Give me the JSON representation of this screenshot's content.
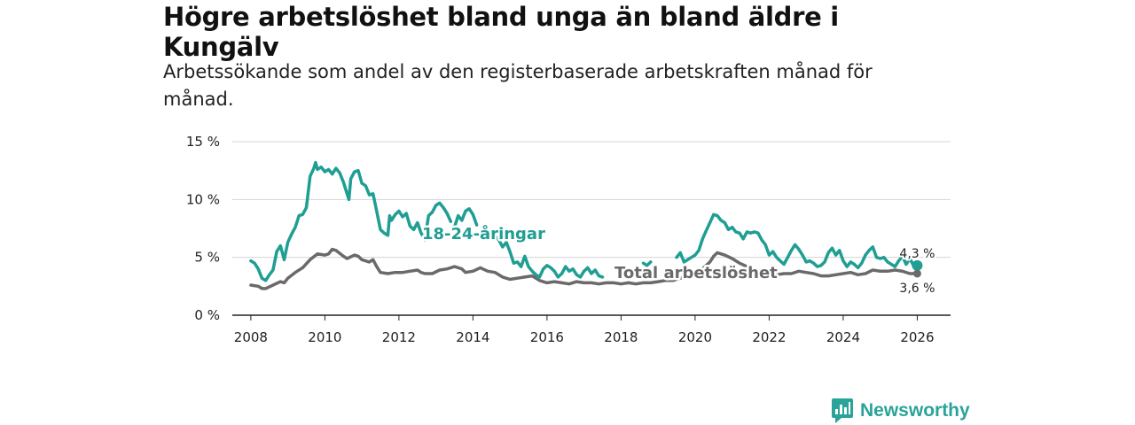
{
  "title": "Högre arbetslöshet bland unga än bland äldre i Kungälv",
  "subtitle": "Arbetssökande som andel av den registerbaserade arbetskraften månad för månad.",
  "brand": {
    "name": "Newsworthy",
    "icon": "bar-chart-logo-icon",
    "color": "#2aa39a"
  },
  "chart_data": {
    "type": "line",
    "x_range": [
      2007.5,
      2026.9
    ],
    "ylim": [
      0,
      15
    ],
    "y_ticks": [
      0,
      5,
      10,
      15
    ],
    "y_tick_labels": [
      "0 %",
      "5 %",
      "10 %",
      "15 %"
    ],
    "x_ticks": [
      2008,
      2010,
      2012,
      2014,
      2016,
      2018,
      2020,
      2022,
      2024,
      2026
    ],
    "x_tick_labels": [
      "2008",
      "2010",
      "2012",
      "2014",
      "2016",
      "2018",
      "2020",
      "2022",
      "2024",
      "2026"
    ],
    "grid": true,
    "series": [
      {
        "name": "18-24-åringar",
        "color": "#1f9e93",
        "end_label": "4,3 %",
        "points": [
          [
            2008.0,
            4.7
          ],
          [
            2008.1,
            4.5
          ],
          [
            2008.2,
            4.0
          ],
          [
            2008.3,
            3.2
          ],
          [
            2008.4,
            3.0
          ],
          [
            2008.5,
            3.5
          ],
          [
            2008.6,
            3.9
          ],
          [
            2008.7,
            5.5
          ],
          [
            2008.8,
            6.0
          ],
          [
            2008.9,
            4.8
          ],
          [
            2009.0,
            6.3
          ],
          [
            2009.1,
            7.0
          ],
          [
            2009.2,
            7.6
          ],
          [
            2009.3,
            8.6
          ],
          [
            2009.4,
            8.7
          ],
          [
            2009.5,
            9.3
          ],
          [
            2009.6,
            12.0
          ],
          [
            2009.7,
            12.7
          ],
          [
            2009.75,
            13.2
          ],
          [
            2009.8,
            12.6
          ],
          [
            2009.9,
            12.8
          ],
          [
            2010.0,
            12.4
          ],
          [
            2010.1,
            12.6
          ],
          [
            2010.2,
            12.2
          ],
          [
            2010.3,
            12.7
          ],
          [
            2010.4,
            12.3
          ],
          [
            2010.5,
            11.5
          ],
          [
            2010.6,
            10.5
          ],
          [
            2010.65,
            10.0
          ],
          [
            2010.7,
            11.8
          ],
          [
            2010.8,
            12.4
          ],
          [
            2010.9,
            12.5
          ],
          [
            2011.0,
            11.4
          ],
          [
            2011.1,
            11.2
          ],
          [
            2011.2,
            10.4
          ],
          [
            2011.3,
            10.5
          ],
          [
            2011.4,
            9.0
          ],
          [
            2011.5,
            7.4
          ],
          [
            2011.6,
            7.1
          ],
          [
            2011.7,
            6.9
          ],
          [
            2011.75,
            8.6
          ],
          [
            2011.8,
            8.2
          ],
          [
            2011.9,
            8.7
          ],
          [
            2012.0,
            9.0
          ],
          [
            2012.1,
            8.5
          ],
          [
            2012.2,
            8.8
          ],
          [
            2012.3,
            7.7
          ],
          [
            2012.4,
            7.4
          ],
          [
            2012.5,
            8.0
          ],
          [
            2012.6,
            7.1
          ],
          [
            2012.7,
            6.5
          ]
        ]
      },
      {
        "name": "Total arbetslöshet",
        "color": "#6a6a6a",
        "end_label": "3,6 %",
        "points": [
          [
            2008.0,
            2.6
          ],
          [
            2008.2,
            2.5
          ],
          [
            2008.3,
            2.3
          ],
          [
            2008.4,
            2.3
          ],
          [
            2008.6,
            2.6
          ],
          [
            2008.8,
            2.9
          ],
          [
            2008.9,
            2.8
          ],
          [
            2009.0,
            3.2
          ],
          [
            2009.2,
            3.7
          ],
          [
            2009.4,
            4.1
          ],
          [
            2009.6,
            4.8
          ],
          [
            2009.8,
            5.3
          ],
          [
            2010.0,
            5.2
          ],
          [
            2010.1,
            5.3
          ],
          [
            2010.2,
            5.7
          ],
          [
            2010.3,
            5.6
          ],
          [
            2010.5,
            5.1
          ],
          [
            2010.6,
            4.9
          ],
          [
            2010.8,
            5.2
          ],
          [
            2010.9,
            5.1
          ],
          [
            2011.0,
            4.8
          ],
          [
            2011.2,
            4.6
          ],
          [
            2011.3,
            4.8
          ],
          [
            2011.4,
            4.2
          ],
          [
            2011.5,
            3.7
          ],
          [
            2011.7,
            3.6
          ],
          [
            2011.9,
            3.7
          ],
          [
            2012.1,
            3.7
          ],
          [
            2012.3,
            3.8
          ],
          [
            2012.5,
            3.9
          ],
          [
            2012.6,
            3.7
          ],
          [
            2012.7,
            3.6
          ],
          [
            2012.9,
            3.6
          ],
          [
            2013.1,
            3.9
          ],
          [
            2013.3,
            4.0
          ],
          [
            2013.5,
            4.2
          ],
          [
            2013.7,
            4.0
          ],
          [
            2013.8,
            3.7
          ],
          [
            2014.0,
            3.8
          ],
          [
            2014.2,
            4.1
          ],
          [
            2014.4,
            3.8
          ],
          [
            2014.6,
            3.7
          ],
          [
            2014.8,
            3.3
          ],
          [
            2015.0,
            3.1
          ],
          [
            2015.2,
            3.2
          ],
          [
            2015.4,
            3.3
          ],
          [
            2015.6,
            3.4
          ],
          [
            2015.8,
            3.0
          ],
          [
            2016.0,
            2.8
          ],
          [
            2016.2,
            2.9
          ],
          [
            2016.4,
            2.8
          ],
          [
            2016.6,
            2.7
          ],
          [
            2016.8,
            2.9
          ],
          [
            2017.0,
            2.8
          ],
          [
            2017.2,
            2.8
          ],
          [
            2017.4,
            2.7
          ],
          [
            2017.6,
            2.8
          ],
          [
            2017.8,
            2.8
          ],
          [
            2018.0,
            2.7
          ],
          [
            2018.2,
            2.8
          ],
          [
            2018.4,
            2.7
          ],
          [
            2018.6,
            2.8
          ],
          [
            2018.8,
            2.8
          ],
          [
            2019.0,
            2.9
          ],
          [
            2019.2,
            3.0
          ],
          [
            2019.4,
            3.0
          ],
          [
            2019.6,
            3.2
          ],
          [
            2019.8,
            3.3
          ],
          [
            2020.0,
            3.6
          ],
          [
            2020.2,
            4.0
          ],
          [
            2020.4,
            4.6
          ],
          [
            2020.5,
            5.1
          ],
          [
            2020.6,
            5.4
          ],
          [
            2020.8,
            5.2
          ],
          [
            2021.0,
            4.9
          ],
          [
            2021.2,
            4.5
          ],
          [
            2021.4,
            4.2
          ],
          [
            2021.6,
            3.9
          ],
          [
            2021.8,
            3.8
          ],
          [
            2022.0,
            3.6
          ],
          [
            2022.2,
            3.5
          ],
          [
            2022.4,
            3.6
          ],
          [
            2022.6,
            3.6
          ],
          [
            2022.8,
            3.8
          ],
          [
            2023.0,
            3.7
          ],
          [
            2023.2,
            3.6
          ],
          [
            2023.4,
            3.4
          ],
          [
            2023.6,
            3.4
          ],
          [
            2023.8,
            3.5
          ],
          [
            2024.0,
            3.6
          ],
          [
            2024.2,
            3.7
          ],
          [
            2024.4,
            3.5
          ],
          [
            2024.6,
            3.6
          ],
          [
            2024.8,
            3.9
          ],
          [
            2025.0,
            3.8
          ],
          [
            2025.2,
            3.8
          ],
          [
            2025.4,
            3.9
          ],
          [
            2025.6,
            3.8
          ],
          [
            2025.8,
            3.6
          ],
          [
            2026.0,
            3.6
          ]
        ]
      }
    ],
    "series_segments": [
      [
        [
          2012.7,
          6.5
        ],
        [
          2012.8,
          8.6
        ],
        [
          2012.9,
          8.9
        ],
        [
          2013.0,
          9.5
        ],
        [
          2013.1,
          9.7
        ],
        [
          2013.2,
          9.3
        ],
        [
          2013.3,
          8.8
        ],
        [
          2013.4,
          8.1
        ]
      ],
      [
        [
          2013.5,
          7.6
        ],
        [
          2013.6,
          8.6
        ],
        [
          2013.7,
          8.2
        ],
        [
          2013.8,
          9.0
        ],
        [
          2013.9,
          9.2
        ],
        [
          2014.0,
          8.7
        ],
        [
          2014.1,
          7.8
        ]
      ],
      [
        [
          2014.55,
          7.0
        ],
        [
          2014.7,
          6.5
        ],
        [
          2014.8,
          5.9
        ],
        [
          2014.9,
          6.3
        ]
      ],
      [
        [
          2014.9,
          6.3
        ],
        [
          2015.0,
          5.5
        ],
        [
          2015.1,
          4.5
        ],
        [
          2015.2,
          4.6
        ],
        [
          2015.3,
          4.2
        ],
        [
          2015.4,
          5.1
        ],
        [
          2015.5,
          4.2
        ],
        [
          2015.6,
          3.8
        ],
        [
          2015.7,
          3.5
        ],
        [
          2015.8,
          3.3
        ],
        [
          2015.9,
          4.0
        ],
        [
          2016.0,
          4.3
        ],
        [
          2016.1,
          4.1
        ],
        [
          2016.2,
          3.8
        ],
        [
          2016.3,
          3.3
        ],
        [
          2016.4,
          3.6
        ],
        [
          2016.5,
          4.2
        ],
        [
          2016.6,
          3.8
        ],
        [
          2016.7,
          4.0
        ],
        [
          2016.8,
          3.5
        ],
        [
          2016.9,
          3.3
        ],
        [
          2017.0,
          3.8
        ],
        [
          2017.1,
          4.1
        ],
        [
          2017.2,
          3.6
        ],
        [
          2017.3,
          3.9
        ],
        [
          2017.4,
          3.4
        ],
        [
          2017.5,
          3.3
        ]
      ],
      [
        [
          2018.6,
          4.5
        ],
        [
          2018.7,
          4.3
        ],
        [
          2018.8,
          4.6
        ]
      ],
      [
        [
          2019.5,
          5.0
        ],
        [
          2019.6,
          5.4
        ],
        [
          2019.7,
          4.6
        ],
        [
          2019.8,
          4.8
        ],
        [
          2019.9,
          5.0
        ],
        [
          2020.0,
          5.2
        ],
        [
          2020.1,
          5.6
        ],
        [
          2020.2,
          6.6
        ],
        [
          2020.3,
          7.3
        ],
        [
          2020.4,
          8.0
        ],
        [
          2020.5,
          8.7
        ],
        [
          2020.6,
          8.6
        ],
        [
          2020.7,
          8.2
        ],
        [
          2020.8,
          8.0
        ],
        [
          2020.9,
          7.4
        ],
        [
          2021.0,
          7.6
        ],
        [
          2021.1,
          7.2
        ],
        [
          2021.2,
          7.1
        ],
        [
          2021.3,
          6.6
        ],
        [
          2021.4,
          7.2
        ],
        [
          2021.5,
          7.1
        ],
        [
          2021.6,
          7.2
        ],
        [
          2021.7,
          7.1
        ],
        [
          2021.8,
          6.5
        ],
        [
          2021.9,
          6.1
        ],
        [
          2022.0,
          5.2
        ],
        [
          2022.1,
          5.5
        ],
        [
          2022.2,
          5.0
        ],
        [
          2022.3,
          4.7
        ],
        [
          2022.4,
          4.4
        ],
        [
          2022.5,
          5.0
        ],
        [
          2022.6,
          5.6
        ],
        [
          2022.7,
          6.1
        ],
        [
          2022.8,
          5.7
        ],
        [
          2022.9,
          5.2
        ],
        [
          2023.0,
          4.6
        ],
        [
          2023.1,
          4.7
        ],
        [
          2023.2,
          4.5
        ],
        [
          2023.3,
          4.2
        ],
        [
          2023.4,
          4.3
        ],
        [
          2023.5,
          4.6
        ],
        [
          2023.6,
          5.4
        ],
        [
          2023.7,
          5.8
        ],
        [
          2023.8,
          5.2
        ],
        [
          2023.9,
          5.6
        ],
        [
          2024.0,
          4.7
        ],
        [
          2024.1,
          4.2
        ],
        [
          2024.2,
          4.6
        ],
        [
          2024.3,
          4.4
        ],
        [
          2024.4,
          4.1
        ],
        [
          2024.5,
          4.5
        ],
        [
          2024.6,
          5.2
        ],
        [
          2024.7,
          5.6
        ],
        [
          2024.8,
          5.9
        ],
        [
          2024.9,
          5.0
        ],
        [
          2025.0,
          4.9
        ],
        [
          2025.1,
          5.0
        ],
        [
          2025.2,
          4.6
        ],
        [
          2025.3,
          4.4
        ],
        [
          2025.4,
          4.2
        ],
        [
          2025.5,
          4.7
        ],
        [
          2025.6,
          5.1
        ],
        [
          2025.7,
          4.4
        ],
        [
          2025.8,
          4.9
        ],
        [
          2025.9,
          4.3
        ],
        [
          2026.0,
          4.3
        ]
      ]
    ]
  }
}
